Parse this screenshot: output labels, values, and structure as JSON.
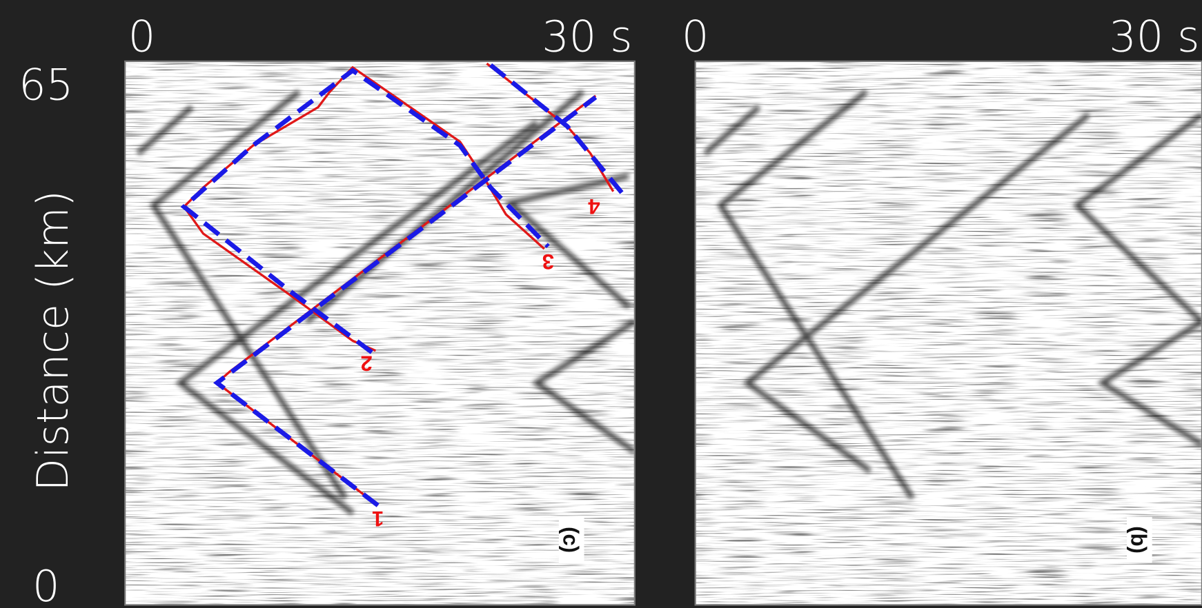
{
  "y_axis": {
    "top": "65",
    "title": "Distance (km)",
    "bottom": "0"
  },
  "panels": [
    {
      "x_start": "0",
      "x_end": "30 s",
      "label": "(c)",
      "curve_labels": [
        "1",
        "2",
        "3",
        "4"
      ]
    },
    {
      "x_start": "0",
      "x_end": "30 s",
      "label": "(b)"
    }
  ]
}
